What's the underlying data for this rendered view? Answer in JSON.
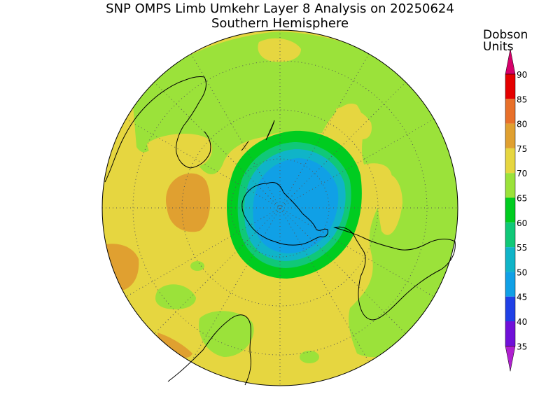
{
  "title": "SNP OMPS Limb Umkehr Layer 8 Analysis on 20250624",
  "subtitle": "Southern Hemisphere",
  "colorbar": {
    "unit_line1": "Dobson",
    "unit_line2": "Units",
    "levels": [
      {
        "value": "90",
        "color": "#d6006a"
      },
      {
        "value": "85",
        "color": "#e40000"
      },
      {
        "value": "80",
        "color": "#e8702a"
      },
      {
        "value": "75",
        "color": "#e0a030"
      },
      {
        "value": "70",
        "color": "#e6d640"
      },
      {
        "value": "65",
        "color": "#9be23a"
      },
      {
        "value": "60",
        "color": "#00cc20"
      },
      {
        "value": "55",
        "color": "#10c878"
      },
      {
        "value": "50",
        "color": "#10b4c8"
      },
      {
        "value": "45",
        "color": "#10a0e6"
      },
      {
        "value": "40",
        "color": "#2040e6"
      },
      {
        "value": "35",
        "color": "#7010d8"
      }
    ],
    "bottom_color": "#b020d0"
  },
  "colors": {
    "background_field": "#e6d640",
    "green_field": "#9be23a",
    "orange_field": "#e0a030",
    "vortex_green": "#00cc20",
    "vortex_teal": "#10c878",
    "vortex_cyan": "#10b4c8",
    "vortex_blue": "#10a0e6"
  }
}
